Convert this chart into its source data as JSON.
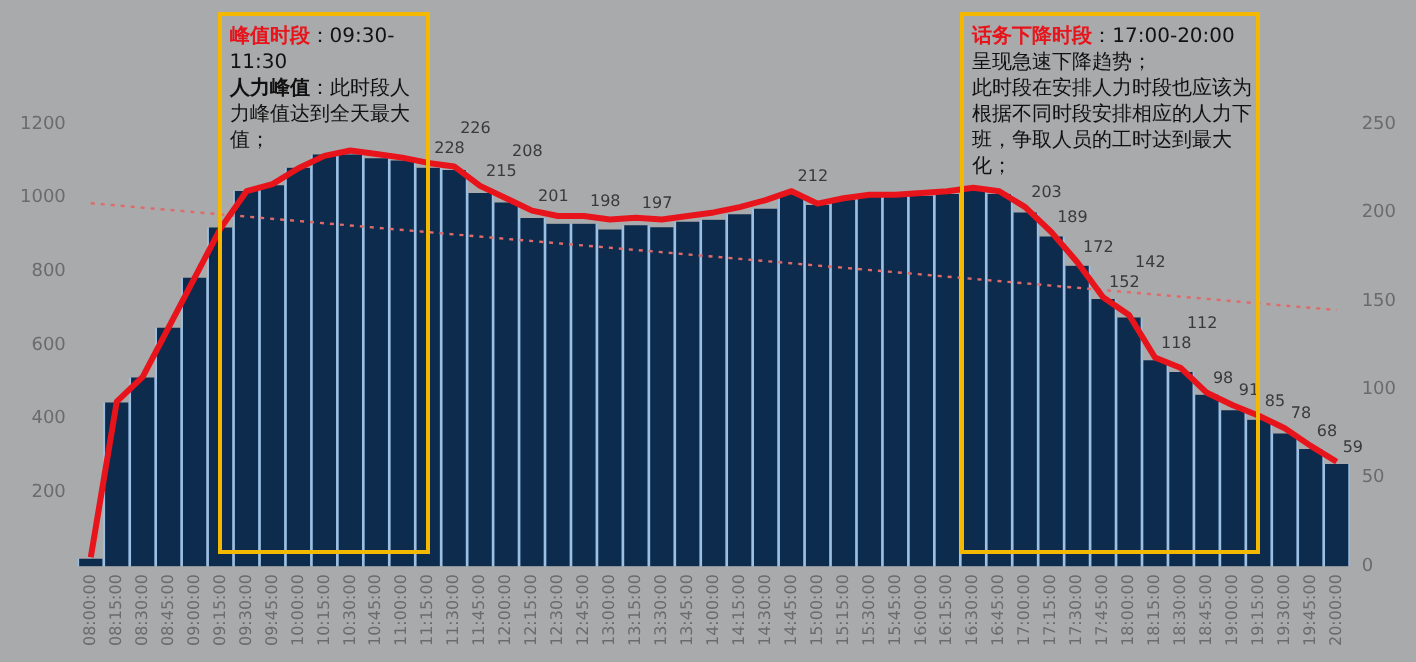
{
  "chart_data": {
    "type": "bar",
    "categories": [
      "08:00:00",
      "08:15:00",
      "08:30:00",
      "08:45:00",
      "09:00:00",
      "09:15:00",
      "09:30:00",
      "09:45:00",
      "10:00:00",
      "10:15:00",
      "10:30:00",
      "10:45:00",
      "11:00:00",
      "11:15:00",
      "11:30:00",
      "11:45:00",
      "12:00:00",
      "12:15:00",
      "12:30:00",
      "12:45:00",
      "13:00:00",
      "13:15:00",
      "13:30:00",
      "13:45:00",
      "14:00:00",
      "14:15:00",
      "14:30:00",
      "14:45:00",
      "15:00:00",
      "15:15:00",
      "15:30:00",
      "15:45:00",
      "16:00:00",
      "16:15:00",
      "16:30:00",
      "16:45:00",
      "17:00:00",
      "17:15:00",
      "17:30:00",
      "17:45:00",
      "18:00:00",
      "18:15:00",
      "18:30:00",
      "18:45:00",
      "19:00:00",
      "19:15:00",
      "19:30:00",
      "19:45:00",
      "20:00:00"
    ],
    "series": [
      {
        "color": "#0d2b4c",
        "values": [
          20,
          444,
          512,
          647,
          783,
          919,
          1018,
          1034,
          1081,
          1117,
          1117,
          1107,
          1101,
          1081,
          1075,
          1013,
          987,
          945,
          929,
          929,
          914,
          925,
          920,
          935,
          940,
          955,
          970,
          1010,
          980,
          995,
          1005,
          1005,
          1005,
          1010,
          1025,
          1010,
          960,
          895,
          815,
          725,
          675,
          559,
          527,
          465,
          423,
          397,
          360,
          318,
          277
        ]
      },
      {
        "type": "line",
        "axis": "y2",
        "color": "#e8141c",
        "values": [
          5,
          93,
          107,
          135,
          163,
          191,
          212,
          216,
          225,
          232,
          235,
          233,
          231,
          228,
          226,
          215,
          208,
          201,
          198,
          198,
          196,
          197,
          196,
          198,
          200,
          203,
          207,
          212,
          205,
          208,
          210,
          210,
          211,
          212,
          214,
          212,
          203,
          189,
          172,
          152,
          142,
          118,
          112,
          98,
          91,
          85,
          78,
          68,
          59
        ],
        "value_labels": [
          null,
          null,
          null,
          null,
          null,
          null,
          null,
          null,
          null,
          null,
          null,
          null,
          null,
          "228",
          "226",
          "215",
          "208",
          "201",
          null,
          "198",
          null,
          "197",
          null,
          null,
          null,
          null,
          null,
          "212",
          null,
          null,
          null,
          null,
          null,
          null,
          null,
          null,
          "203",
          "189",
          "172",
          "152",
          "142",
          "118",
          "112",
          "98",
          "91",
          "85",
          "78",
          "68",
          "59"
        ]
      },
      {
        "type": "line",
        "color": "#e06a6a",
        "line_style": "dotted",
        "x": [
          "08:00:00",
          "20:00:00"
        ],
        "values": [
          985,
          695
        ]
      }
    ],
    "ylim": [
      0,
      1200
    ],
    "yticks": [
      200,
      400,
      600,
      800,
      1000,
      1200
    ],
    "y2lim": [
      0,
      250
    ],
    "y2ticks": [
      0,
      50,
      100,
      150,
      200,
      250
    ],
    "grid": false,
    "legend": false,
    "annotations": [
      "峰值时段：09:30-11:30",
      "人力峰值：此时段人力峰值达到全天最大值；",
      "话务下降时段：17:00-20:00呈现急速下降趋势；",
      "此时段在安排人力时段也应该为根据不同时段安排相应的人力下班，争取人员的工时达到最大化；"
    ]
  }
}
